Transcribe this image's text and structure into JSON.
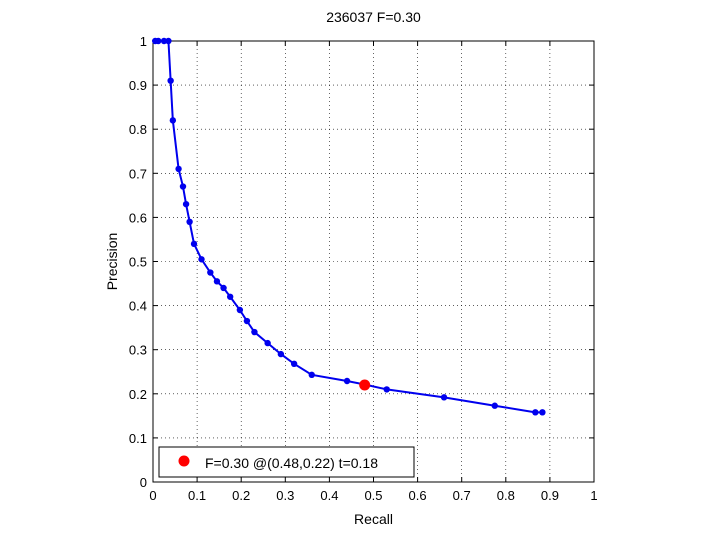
{
  "chart_data": {
    "type": "line",
    "title": "236037 F=0.30",
    "xlabel": "Recall",
    "ylabel": "Precision",
    "xlim": [
      0,
      1
    ],
    "ylim": [
      0,
      1
    ],
    "xticks": [
      0,
      0.1,
      0.2,
      0.3,
      0.4,
      0.5,
      0.6,
      0.7,
      0.8,
      0.9,
      1
    ],
    "yticks": [
      0,
      0.1,
      0.2,
      0.3,
      0.4,
      0.5,
      0.6,
      0.7,
      0.8,
      0.9,
      1
    ],
    "xtick_labels": [
      "0",
      "0.1",
      "0.2",
      "0.3",
      "0.4",
      "0.5",
      "0.6",
      "0.7",
      "0.8",
      "0.9",
      "1"
    ],
    "ytick_labels": [
      "0",
      "0.1",
      "0.2",
      "0.3",
      "0.4",
      "0.5",
      "0.6",
      "0.7",
      "0.8",
      "0.9",
      "1"
    ],
    "grid": true,
    "legend_position": "bottom-left",
    "series": [
      {
        "color": "#0000ee",
        "x": [
          0.005,
          0.012,
          0.025,
          0.035,
          0.04,
          0.045,
          0.058,
          0.068,
          0.075,
          0.083,
          0.093,
          0.11,
          0.13,
          0.145,
          0.16,
          0.175,
          0.197,
          0.213,
          0.23,
          0.26,
          0.29,
          0.32,
          0.36,
          0.44,
          0.48,
          0.53,
          0.66,
          0.775,
          0.867,
          0.883
        ],
        "y": [
          1.0,
          1.0,
          1.0,
          1.0,
          0.91,
          0.82,
          0.71,
          0.67,
          0.63,
          0.59,
          0.54,
          0.505,
          0.475,
          0.455,
          0.44,
          0.42,
          0.39,
          0.365,
          0.34,
          0.315,
          0.29,
          0.268,
          0.243,
          0.229,
          0.221,
          0.21,
          0.192,
          0.173,
          0.158,
          0.158
        ]
      }
    ],
    "highlight": {
      "x": 0.48,
      "y": 0.22,
      "color": "#ff0000",
      "legend": "F=0.30 @(0.48,0.22) t=0.18"
    }
  }
}
